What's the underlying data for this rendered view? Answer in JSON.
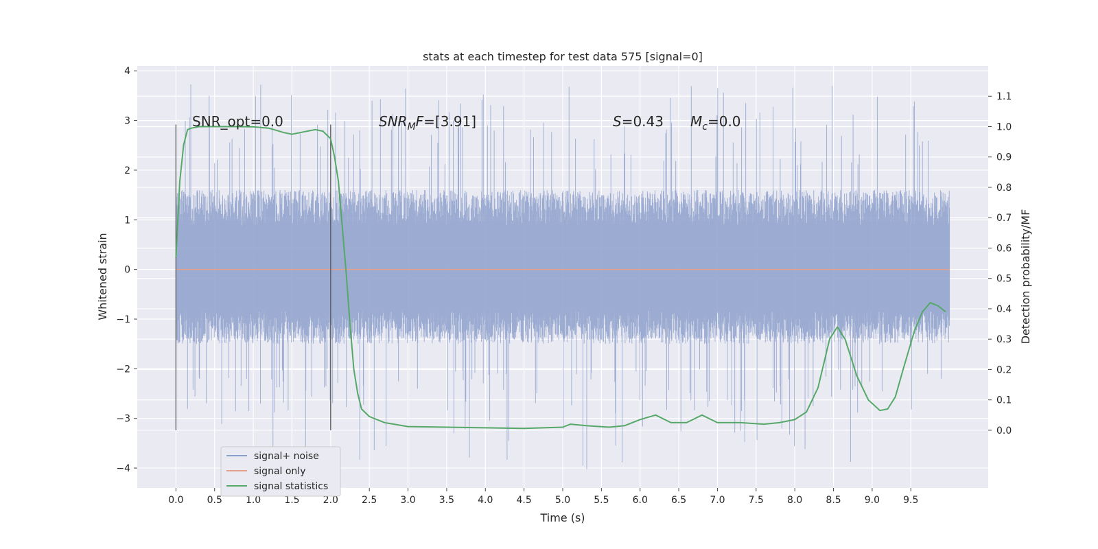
{
  "chart_data": {
    "type": "line",
    "title": "stats at each timestep for test data 575 [signal=0]",
    "xlabel": "Time (s)",
    "ylabel": "Whitened strain",
    "y2label": "Detection probability/MF",
    "xlim": [
      -0.5,
      10.5
    ],
    "ylim": [
      -4.4,
      4.1
    ],
    "y2lim": [
      -0.19,
      1.2
    ],
    "x_ticks": [
      0.0,
      0.5,
      1.0,
      1.5,
      2.0,
      2.5,
      3.0,
      3.5,
      4.0,
      4.5,
      5.0,
      5.5,
      6.0,
      6.5,
      7.0,
      7.5,
      8.0,
      8.5,
      9.0,
      9.5
    ],
    "x_tick_labels": [
      "0.0",
      "0.5",
      "1.0",
      "1.5",
      "2.0",
      "2.5",
      "3.0",
      "3.5",
      "4.0",
      "4.5",
      "5.0",
      "5.5",
      "6.0",
      "6.5",
      "7.0",
      "7.5",
      "8.0",
      "8.5",
      "9.0",
      "9.5"
    ],
    "y_ticks": [
      -4,
      -3,
      -2,
      -1,
      0,
      1,
      2,
      3,
      4
    ],
    "y_tick_labels": [
      "−4",
      "−3",
      "−2",
      "−1",
      "0",
      "1",
      "2",
      "3",
      "4"
    ],
    "y2_ticks": [
      0.0,
      0.1,
      0.2,
      0.3,
      0.4,
      0.5,
      0.6,
      0.7,
      0.8,
      0.9,
      1.0,
      1.1
    ],
    "y2_tick_labels": [
      "0.0",
      "0.1",
      "0.2",
      "0.3",
      "0.4",
      "0.5",
      "0.6",
      "0.7",
      "0.8",
      "0.9",
      "1.0",
      "1.1"
    ],
    "grid": true,
    "legend_position": "lower-left",
    "series": [
      {
        "name": "signal+ noise",
        "color": "#8da0cb",
        "axis": "left",
        "kind": "noise",
        "x_range": [
          0.0,
          10.0
        ],
        "typical_band": [
          -1.5,
          1.6
        ],
        "extremes": [
          -4.05,
          3.75
        ],
        "values": [
          [
            0.0,
            0.0
          ]
        ]
      },
      {
        "name": "signal only",
        "color": "#e5a18b",
        "axis": "left",
        "x": [
          0.0,
          10.0
        ],
        "values": [
          0.0,
          0.0
        ]
      },
      {
        "name": "signal statistics",
        "color": "#55a868",
        "axis": "right",
        "x": [
          0.0,
          0.05,
          0.1,
          0.15,
          0.2,
          0.3,
          0.5,
          0.8,
          1.0,
          1.2,
          1.4,
          1.5,
          1.6,
          1.8,
          1.9,
          2.0,
          2.05,
          2.1,
          2.2,
          2.25,
          2.3,
          2.35,
          2.4,
          2.5,
          2.7,
          3.0,
          3.5,
          4.0,
          4.5,
          5.0,
          5.1,
          5.3,
          5.6,
          5.8,
          6.0,
          6.2,
          6.4,
          6.6,
          6.8,
          7.0,
          7.3,
          7.6,
          7.8,
          8.0,
          8.15,
          8.3,
          8.45,
          8.55,
          8.65,
          8.8,
          8.95,
          9.1,
          9.2,
          9.3,
          9.4,
          9.55,
          9.65,
          9.75,
          9.85,
          9.95
        ],
        "values": [
          0.57,
          0.82,
          0.94,
          0.99,
          0.995,
          1.0,
          1.0,
          1.0,
          0.999,
          0.995,
          0.98,
          0.975,
          0.98,
          0.99,
          0.985,
          0.96,
          0.9,
          0.82,
          0.52,
          0.35,
          0.2,
          0.12,
          0.07,
          0.045,
          0.025,
          0.012,
          0.01,
          0.008,
          0.006,
          0.01,
          0.02,
          0.015,
          0.01,
          0.015,
          0.035,
          0.05,
          0.025,
          0.025,
          0.05,
          0.025,
          0.025,
          0.02,
          0.025,
          0.035,
          0.06,
          0.14,
          0.3,
          0.34,
          0.3,
          0.18,
          0.1,
          0.065,
          0.07,
          0.11,
          0.2,
          0.33,
          0.39,
          0.42,
          0.41,
          0.39
        ]
      }
    ],
    "vlines": [
      0.0,
      2.0
    ],
    "annotations": [
      {
        "kind": "plain",
        "text": "SNR_opt=0.0"
      },
      {
        "kind": "sub",
        "base": "SNR",
        "sub": "M",
        "rest": "F=[3.91]"
      },
      {
        "kind": "plain-italic-prefix",
        "base": "S",
        "rest": "=0.43"
      },
      {
        "kind": "sub",
        "base": "M",
        "sub": "c",
        "rest": "=0.0"
      }
    ]
  }
}
